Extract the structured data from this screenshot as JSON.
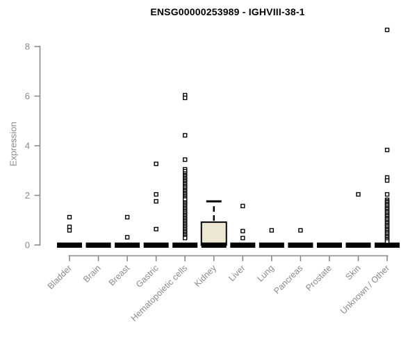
{
  "window": {
    "background": "#ffffff"
  },
  "chart_data": {
    "type": "boxplot",
    "title": "ENSG00000253989 - IGHVIII-38-1",
    "ylabel": "Expression",
    "xlabel": "",
    "yticks": [
      0,
      2,
      4,
      6,
      8
    ],
    "ylim": [
      0,
      8.8
    ],
    "grid": false,
    "legend": "none",
    "colors": {
      "axis": "#8a8a8a",
      "tick_label": "#8a8a8a",
      "box_fill": "#ede8d1",
      "box_border": "#000000",
      "outlier_fill": "#ffffff",
      "title": "#000000"
    },
    "categories": [
      "Bladder",
      "Brain",
      "Breast",
      "Gastric",
      "Hematopoietic cells",
      "Kidney",
      "Liver",
      "Lung",
      "Pancreas",
      "Prostate",
      "Skin",
      "Unknown / Other"
    ],
    "boxes": [
      {
        "category": "Bladder",
        "q1": 0,
        "median": 0,
        "q3": 0,
        "whisker_low": 0,
        "whisker_high": 0,
        "outliers": [
          1.12,
          0.73,
          0.59
        ]
      },
      {
        "category": "Brain",
        "q1": 0,
        "median": 0,
        "q3": 0,
        "whisker_low": 0,
        "whisker_high": 0,
        "outliers": []
      },
      {
        "category": "Breast",
        "q1": 0,
        "median": 0,
        "q3": 0,
        "whisker_low": 0,
        "whisker_high": 0,
        "outliers": [
          1.12,
          0.31
        ]
      },
      {
        "category": "Gastric",
        "q1": 0,
        "median": 0,
        "q3": 0,
        "whisker_low": 0,
        "whisker_high": 0,
        "outliers": [
          3.27,
          2.04,
          1.76,
          0.64
        ]
      },
      {
        "category": "Hematopoietic cells",
        "q1": 0,
        "median": 0,
        "q3": 0,
        "whisker_low": 0,
        "whisker_high": 0,
        "outliers": [
          6.04,
          5.93,
          4.42,
          3.44,
          3.05,
          2.97,
          2.88,
          2.82,
          2.77,
          2.71,
          2.66,
          2.6,
          2.55,
          2.49,
          2.44,
          2.38,
          2.33,
          2.27,
          2.21,
          2.16,
          2.1,
          2.05,
          1.99,
          1.94,
          1.88,
          1.83,
          1.71,
          1.66,
          1.6,
          1.55,
          1.49,
          1.44,
          1.38,
          1.33,
          1.27,
          1.21,
          1.16,
          1.1,
          1.05,
          0.99,
          0.94,
          0.88,
          0.83,
          0.77,
          0.72,
          0.66,
          0.61,
          0.55,
          0.5,
          0.44,
          0.39,
          0.33,
          0.28
        ]
      },
      {
        "category": "Kidney",
        "q1": 0,
        "median": 0,
        "q3": 0.92,
        "whisker_low": 0,
        "whisker_high": 1.76,
        "outliers": []
      },
      {
        "category": "Liver",
        "q1": 0,
        "median": 0,
        "q3": 0,
        "whisker_low": 0,
        "whisker_high": 0,
        "outliers": [
          1.57,
          0.56,
          0.28
        ]
      },
      {
        "category": "Lung",
        "q1": 0,
        "median": 0,
        "q3": 0,
        "whisker_low": 0,
        "whisker_high": 0,
        "outliers": [
          0.59
        ]
      },
      {
        "category": "Pancreas",
        "q1": 0,
        "median": 0,
        "q3": 0,
        "whisker_low": 0,
        "whisker_high": 0,
        "outliers": [
          0.59
        ]
      },
      {
        "category": "Prostate",
        "q1": 0,
        "median": 0,
        "q3": 0,
        "whisker_low": 0,
        "whisker_high": 0,
        "outliers": []
      },
      {
        "category": "Skin",
        "q1": 0,
        "median": 0,
        "q3": 0,
        "whisker_low": 0,
        "whisker_high": 0,
        "outliers": [
          2.04
        ]
      },
      {
        "category": "Unknown / Other",
        "q1": 0,
        "median": 0,
        "q3": 0,
        "whisker_low": 0,
        "whisker_high": 0,
        "outliers": [
          8.67,
          3.83,
          2.72,
          2.6,
          2.04,
          1.82,
          1.76,
          1.71,
          1.65,
          1.6,
          1.54,
          1.48,
          1.43,
          1.37,
          1.32,
          1.26,
          1.2,
          1.15,
          1.09,
          1.04,
          0.98,
          0.92,
          0.87,
          0.81,
          0.76,
          0.7,
          0.64,
          0.59,
          0.53,
          0.48,
          0.42,
          0.36,
          0.31,
          0.25,
          0.2,
          0.14
        ]
      }
    ]
  }
}
